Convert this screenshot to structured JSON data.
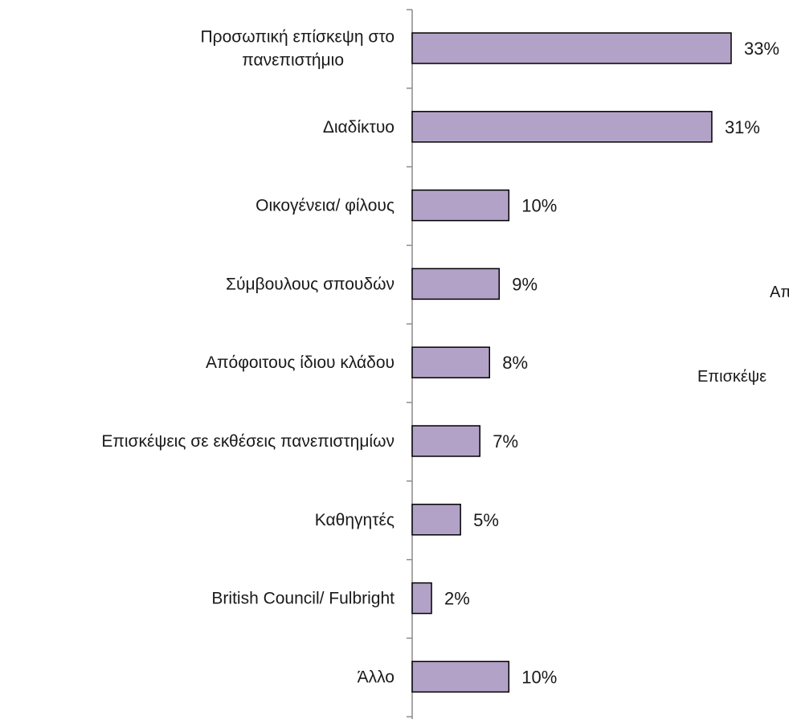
{
  "chart_data": {
    "type": "bar",
    "orientation": "horizontal",
    "categories": [
      [
        "Προσωπική επίσκεψη στο",
        "πανεπιστήμιο"
      ],
      [
        "Διαδίκτυο"
      ],
      [
        "Οικογένεια/ φίλους"
      ],
      [
        "Σύμβουλους σπουδών"
      ],
      [
        "Απόφοιτους ίδιου κλάδου"
      ],
      [
        "Επισκέψεις σε εκθέσεις πανεπιστημίων"
      ],
      [
        "Καθηγητές"
      ],
      [
        "British Council/ Fulbright"
      ],
      [
        "Άλλο"
      ]
    ],
    "values": [
      33,
      31,
      10,
      9,
      8,
      7,
      5,
      2,
      10
    ],
    "value_labels": [
      "33%",
      "31%",
      "10%",
      "9%",
      "8%",
      "7%",
      "5%",
      "2%",
      "10%"
    ],
    "unit": "%",
    "xlim": [
      0,
      33
    ],
    "grid": false,
    "bar_color": "#b3a2c7",
    "bar_border_color": "#000000"
  },
  "clipped_text": [
    "Απ",
    "Επισκέψε"
  ]
}
